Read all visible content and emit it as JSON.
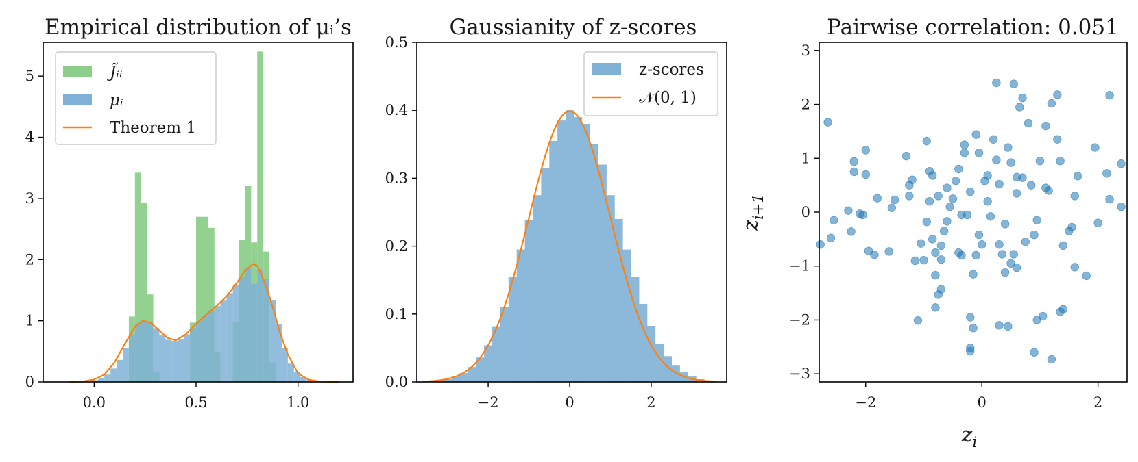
{
  "colors": {
    "green": "#8dcf8a",
    "blue": "#7fb1d6",
    "blue_dark": "#1f77b4",
    "orange": "#ff7f0e",
    "axis": "#000000"
  },
  "chart_data": [
    {
      "type": "bar",
      "title": "Empirical distribution of μᵢ’s",
      "xlabel": "",
      "ylabel": "",
      "xlim": [
        -0.25,
        1.27
      ],
      "ylim": [
        0,
        5.55
      ],
      "x_ticks": [
        0.0,
        0.5,
        1.0
      ],
      "x_tick_labels": [
        "0.0",
        "0.5",
        "1.0"
      ],
      "y_ticks": [
        0,
        1,
        2,
        3,
        4,
        5
      ],
      "y_tick_labels": [
        "0",
        "1",
        "2",
        "3",
        "4",
        "5"
      ],
      "legend": {
        "position": "top-left",
        "entries": [
          "J̃ᵢᵢ",
          "μᵢ",
          "Theorem 1"
        ]
      },
      "series": [
        {
          "name": "J̃ᵢᵢ",
          "kind": "histogram",
          "bins": [
            {
              "x0": 0.17,
              "x1": 0.2,
              "y": 1.07
            },
            {
              "x0": 0.2,
              "x1": 0.23,
              "y": 3.42
            },
            {
              "x0": 0.23,
              "x1": 0.26,
              "y": 2.92
            },
            {
              "x0": 0.26,
              "x1": 0.29,
              "y": 1.43
            },
            {
              "x0": 0.29,
              "x1": 0.32,
              "y": 0.17
            },
            {
              "x0": 0.47,
              "x1": 0.5,
              "y": 0.97
            },
            {
              "x0": 0.5,
              "x1": 0.53,
              "y": 2.7
            },
            {
              "x0": 0.53,
              "x1": 0.56,
              "y": 2.7
            },
            {
              "x0": 0.56,
              "x1": 0.59,
              "y": 2.52
            },
            {
              "x0": 0.59,
              "x1": 0.62,
              "y": 0.48
            },
            {
              "x0": 0.68,
              "x1": 0.71,
              "y": 0.97
            },
            {
              "x0": 0.71,
              "x1": 0.74,
              "y": 2.32
            },
            {
              "x0": 0.74,
              "x1": 0.77,
              "y": 3.2
            },
            {
              "x0": 0.77,
              "x1": 0.8,
              "y": 2.28
            },
            {
              "x0": 0.8,
              "x1": 0.83,
              "y": 5.4
            },
            {
              "x0": 0.83,
              "x1": 0.86,
              "y": 2.13
            },
            {
              "x0": 0.86,
              "x1": 0.89,
              "y": 0.32
            }
          ]
        },
        {
          "name": "μᵢ",
          "kind": "histogram",
          "bins": [
            {
              "x0": -0.01,
              "x1": 0.02,
              "y": 0.03
            },
            {
              "x0": 0.02,
              "x1": 0.05,
              "y": 0.06
            },
            {
              "x0": 0.05,
              "x1": 0.08,
              "y": 0.12
            },
            {
              "x0": 0.08,
              "x1": 0.11,
              "y": 0.22
            },
            {
              "x0": 0.11,
              "x1": 0.14,
              "y": 0.36
            },
            {
              "x0": 0.14,
              "x1": 0.17,
              "y": 0.55
            },
            {
              "x0": 0.17,
              "x1": 0.2,
              "y": 0.78
            },
            {
              "x0": 0.2,
              "x1": 0.23,
              "y": 0.95
            },
            {
              "x0": 0.23,
              "x1": 0.26,
              "y": 1.0
            },
            {
              "x0": 0.26,
              "x1": 0.29,
              "y": 0.97
            },
            {
              "x0": 0.29,
              "x1": 0.32,
              "y": 0.88
            },
            {
              "x0": 0.32,
              "x1": 0.35,
              "y": 0.76
            },
            {
              "x0": 0.35,
              "x1": 0.38,
              "y": 0.69
            },
            {
              "x0": 0.38,
              "x1": 0.41,
              "y": 0.67
            },
            {
              "x0": 0.41,
              "x1": 0.44,
              "y": 0.7
            },
            {
              "x0": 0.44,
              "x1": 0.47,
              "y": 0.78
            },
            {
              "x0": 0.47,
              "x1": 0.5,
              "y": 0.88
            },
            {
              "x0": 0.5,
              "x1": 0.53,
              "y": 0.99
            },
            {
              "x0": 0.53,
              "x1": 0.56,
              "y": 1.08
            },
            {
              "x0": 0.56,
              "x1": 0.59,
              "y": 1.17
            },
            {
              "x0": 0.59,
              "x1": 0.62,
              "y": 1.24
            },
            {
              "x0": 0.62,
              "x1": 0.65,
              "y": 1.33
            },
            {
              "x0": 0.65,
              "x1": 0.68,
              "y": 1.45
            },
            {
              "x0": 0.68,
              "x1": 0.71,
              "y": 1.58
            },
            {
              "x0": 0.71,
              "x1": 0.74,
              "y": 1.72
            },
            {
              "x0": 0.74,
              "x1": 0.77,
              "y": 1.87
            },
            {
              "x0": 0.77,
              "x1": 0.8,
              "y": 1.6
            },
            {
              "x0": 0.8,
              "x1": 0.83,
              "y": 1.83
            },
            {
              "x0": 0.83,
              "x1": 0.86,
              "y": 1.68
            },
            {
              "x0": 0.86,
              "x1": 0.89,
              "y": 1.34
            },
            {
              "x0": 0.89,
              "x1": 0.92,
              "y": 0.95
            },
            {
              "x0": 0.92,
              "x1": 0.95,
              "y": 0.55
            },
            {
              "x0": 0.95,
              "x1": 0.98,
              "y": 0.3
            },
            {
              "x0": 0.98,
              "x1": 1.01,
              "y": 0.16
            },
            {
              "x0": 1.01,
              "x1": 1.04,
              "y": 0.08
            },
            {
              "x0": 1.04,
              "x1": 1.07,
              "y": 0.03
            }
          ]
        },
        {
          "name": "Theorem 1",
          "kind": "line",
          "x": [
            -0.12,
            -0.05,
            0.0,
            0.05,
            0.1,
            0.15,
            0.2,
            0.24,
            0.28,
            0.32,
            0.36,
            0.4,
            0.45,
            0.5,
            0.55,
            0.6,
            0.65,
            0.7,
            0.74,
            0.78,
            0.8,
            0.82,
            0.85,
            0.88,
            0.91,
            0.95,
            1.0,
            1.05,
            1.1,
            1.15,
            1.2
          ],
          "y": [
            0.0,
            0.01,
            0.04,
            0.12,
            0.32,
            0.62,
            0.9,
            1.0,
            0.96,
            0.84,
            0.72,
            0.68,
            0.78,
            0.95,
            1.1,
            1.24,
            1.4,
            1.62,
            1.82,
            1.93,
            1.9,
            1.76,
            1.5,
            1.18,
            0.82,
            0.45,
            0.14,
            0.04,
            0.01,
            0.0,
            0.0
          ]
        }
      ]
    },
    {
      "type": "bar",
      "title": "Gaussianity of z-scores",
      "xlabel": "",
      "ylabel": "",
      "xlim": [
        -3.75,
        3.85
      ],
      "ylim": [
        0,
        0.5
      ],
      "x_ticks": [
        -2,
        0,
        2
      ],
      "x_tick_labels": [
        "−2",
        "0",
        "2"
      ],
      "y_ticks": [
        0.0,
        0.1,
        0.2,
        0.3,
        0.4,
        0.5
      ],
      "y_tick_labels": [
        "0.0",
        "0.1",
        "0.2",
        "0.3",
        "0.4",
        "0.5"
      ],
      "legend": {
        "position": "top-right",
        "entries": [
          "z-scores",
          "𝒩(0, 1)"
        ]
      },
      "series": [
        {
          "name": "z-scores",
          "kind": "histogram",
          "bin_start": -3.5,
          "bin_width": 0.2,
          "values": [
            0.001,
            0.002,
            0.004,
            0.008,
            0.013,
            0.022,
            0.036,
            0.054,
            0.081,
            0.11,
            0.155,
            0.195,
            0.238,
            0.275,
            0.315,
            0.355,
            0.385,
            0.4,
            0.39,
            0.38,
            0.35,
            0.32,
            0.275,
            0.24,
            0.195,
            0.155,
            0.115,
            0.082,
            0.056,
            0.038,
            0.024,
            0.014,
            0.008,
            0.004,
            0.002
          ]
        },
        {
          "name": "𝒩(0, 1)",
          "kind": "line",
          "function": "normal_pdf",
          "mean": 0,
          "std": 1,
          "x_range": [
            -3.6,
            3.6
          ]
        }
      ]
    },
    {
      "type": "scatter",
      "title": "Pairwise correlation: 0.051",
      "xlabel": "z",
      "xlabel_sub": "i",
      "ylabel": "z",
      "ylabel_sub": "i+1",
      "xlim": [
        -2.8,
        2.5
      ],
      "ylim": [
        -3.15,
        3.15
      ],
      "x_ticks": [
        -2,
        0,
        2
      ],
      "x_tick_labels": [
        "−2",
        "0",
        "2"
      ],
      "y_ticks": [
        -3,
        -2,
        -1,
        0,
        1,
        2,
        3
      ],
      "y_tick_labels": [
        "−3",
        "−2",
        "−1",
        "0",
        "1",
        "2",
        "3"
      ],
      "series": [
        {
          "name": "",
          "points": [
            [
              -2.65,
              1.67
            ],
            [
              -2.55,
              -0.15
            ],
            [
              -2.6,
              -0.48
            ],
            [
              -2.78,
              -0.6
            ],
            [
              -2.3,
              0.03
            ],
            [
              -2.2,
              0.94
            ],
            [
              -2.2,
              0.75
            ],
            [
              -2.25,
              -0.36
            ],
            [
              -2.1,
              -0.03
            ],
            [
              -2.05,
              -0.05
            ],
            [
              -2.0,
              1.15
            ],
            [
              -2.0,
              0.7
            ],
            [
              -1.95,
              -0.72
            ],
            [
              -1.85,
              -0.79
            ],
            [
              -1.8,
              0.26
            ],
            [
              -1.6,
              -0.73
            ],
            [
              -1.5,
              0.23
            ],
            [
              -1.55,
              0.08
            ],
            [
              -1.3,
              1.04
            ],
            [
              -1.2,
              0.6
            ],
            [
              -1.25,
              0.3
            ],
            [
              -1.25,
              0.5
            ],
            [
              -1.15,
              -0.9
            ],
            [
              -1.05,
              -0.58
            ],
            [
              -1.1,
              -2.01
            ],
            [
              -1.0,
              -0.89
            ],
            [
              -0.95,
              1.32
            ],
            [
              -0.9,
              0.76
            ],
            [
              -0.85,
              0.68
            ],
            [
              -0.95,
              -0.18
            ],
            [
              -0.85,
              -0.5
            ],
            [
              -0.8,
              -0.75
            ],
            [
              -0.8,
              -1.17
            ],
            [
              -0.75,
              -1.53
            ],
            [
              -0.8,
              -1.77
            ],
            [
              -0.7,
              -1.43
            ],
            [
              -0.7,
              -0.88
            ],
            [
              -0.7,
              -0.62
            ],
            [
              -0.65,
              -0.35
            ],
            [
              -0.6,
              -0.17
            ],
            [
              -0.55,
              0.1
            ],
            [
              -0.5,
              0.25
            ],
            [
              -0.45,
              0.58
            ],
            [
              -0.4,
              0.8
            ],
            [
              -0.4,
              -0.75
            ],
            [
              -0.35,
              -0.8
            ],
            [
              -0.3,
              1.25
            ],
            [
              -0.3,
              1.1
            ],
            [
              -0.25,
              -0.05
            ],
            [
              -0.2,
              0.38
            ],
            [
              -0.2,
              -1.95
            ],
            [
              -0.2,
              -2.52
            ],
            [
              -0.2,
              -2.58
            ],
            [
              -0.15,
              -2.15
            ],
            [
              -0.1,
              1.44
            ],
            [
              -0.05,
              1.1
            ],
            [
              -0.05,
              -0.42
            ],
            [
              0.0,
              -0.6
            ],
            [
              -0.1,
              -0.8
            ],
            [
              -0.15,
              -1.15
            ],
            [
              0.05,
              0.58
            ],
            [
              0.1,
              0.2
            ],
            [
              0.15,
              -0.08
            ],
            [
              0.2,
              1.35
            ],
            [
              0.25,
              0.97
            ],
            [
              0.25,
              2.4
            ],
            [
              0.3,
              0.52
            ],
            [
              0.3,
              -2.1
            ],
            [
              0.35,
              -0.78
            ],
            [
              0.4,
              -0.22
            ],
            [
              0.4,
              -1.12
            ],
            [
              0.45,
              -2.12
            ],
            [
              0.5,
              0.92
            ],
            [
              0.5,
              -0.95
            ],
            [
              0.55,
              2.38
            ],
            [
              0.55,
              -0.78
            ],
            [
              0.6,
              0.35
            ],
            [
              0.6,
              -1.03
            ],
            [
              0.65,
              1.95
            ],
            [
              0.7,
              2.12
            ],
            [
              0.7,
              0.64
            ],
            [
              0.75,
              -0.55
            ],
            [
              0.8,
              1.65
            ],
            [
              0.85,
              0.5
            ],
            [
              0.9,
              -0.42
            ],
            [
              0.95,
              -0.15
            ],
            [
              0.95,
              -2.0
            ],
            [
              1.0,
              0.95
            ],
            [
              1.05,
              -1.93
            ],
            [
              1.1,
              1.6
            ],
            [
              1.1,
              0.45
            ],
            [
              1.15,
              0.4
            ],
            [
              1.2,
              2.02
            ],
            [
              1.2,
              -2.73
            ],
            [
              1.3,
              1.35
            ],
            [
              1.35,
              0.95
            ],
            [
              1.35,
              -1.85
            ],
            [
              1.4,
              -1.8
            ],
            [
              1.4,
              -0.62
            ],
            [
              1.3,
              2.18
            ],
            [
              1.5,
              -0.35
            ],
            [
              1.55,
              -0.28
            ],
            [
              1.6,
              -1.02
            ],
            [
              1.65,
              0.67
            ],
            [
              1.8,
              -1.18
            ],
            [
              1.95,
              1.2
            ],
            [
              2.0,
              -0.2
            ],
            [
              2.15,
              0.72
            ],
            [
              2.2,
              0.24
            ],
            [
              2.2,
              2.17
            ],
            [
              2.4,
              0.1
            ],
            [
              2.4,
              0.9
            ],
            [
              1.6,
              0.3
            ],
            [
              0.9,
              -2.6
            ],
            [
              0.3,
              -0.6
            ],
            [
              -0.6,
              0.45
            ],
            [
              -0.9,
              0.2
            ],
            [
              0.1,
              0.68
            ],
            [
              0.45,
              1.2
            ],
            [
              -0.35,
              -0.05
            ],
            [
              0.6,
              0.65
            ],
            [
              -0.75,
              0.3
            ]
          ]
        }
      ]
    }
  ]
}
